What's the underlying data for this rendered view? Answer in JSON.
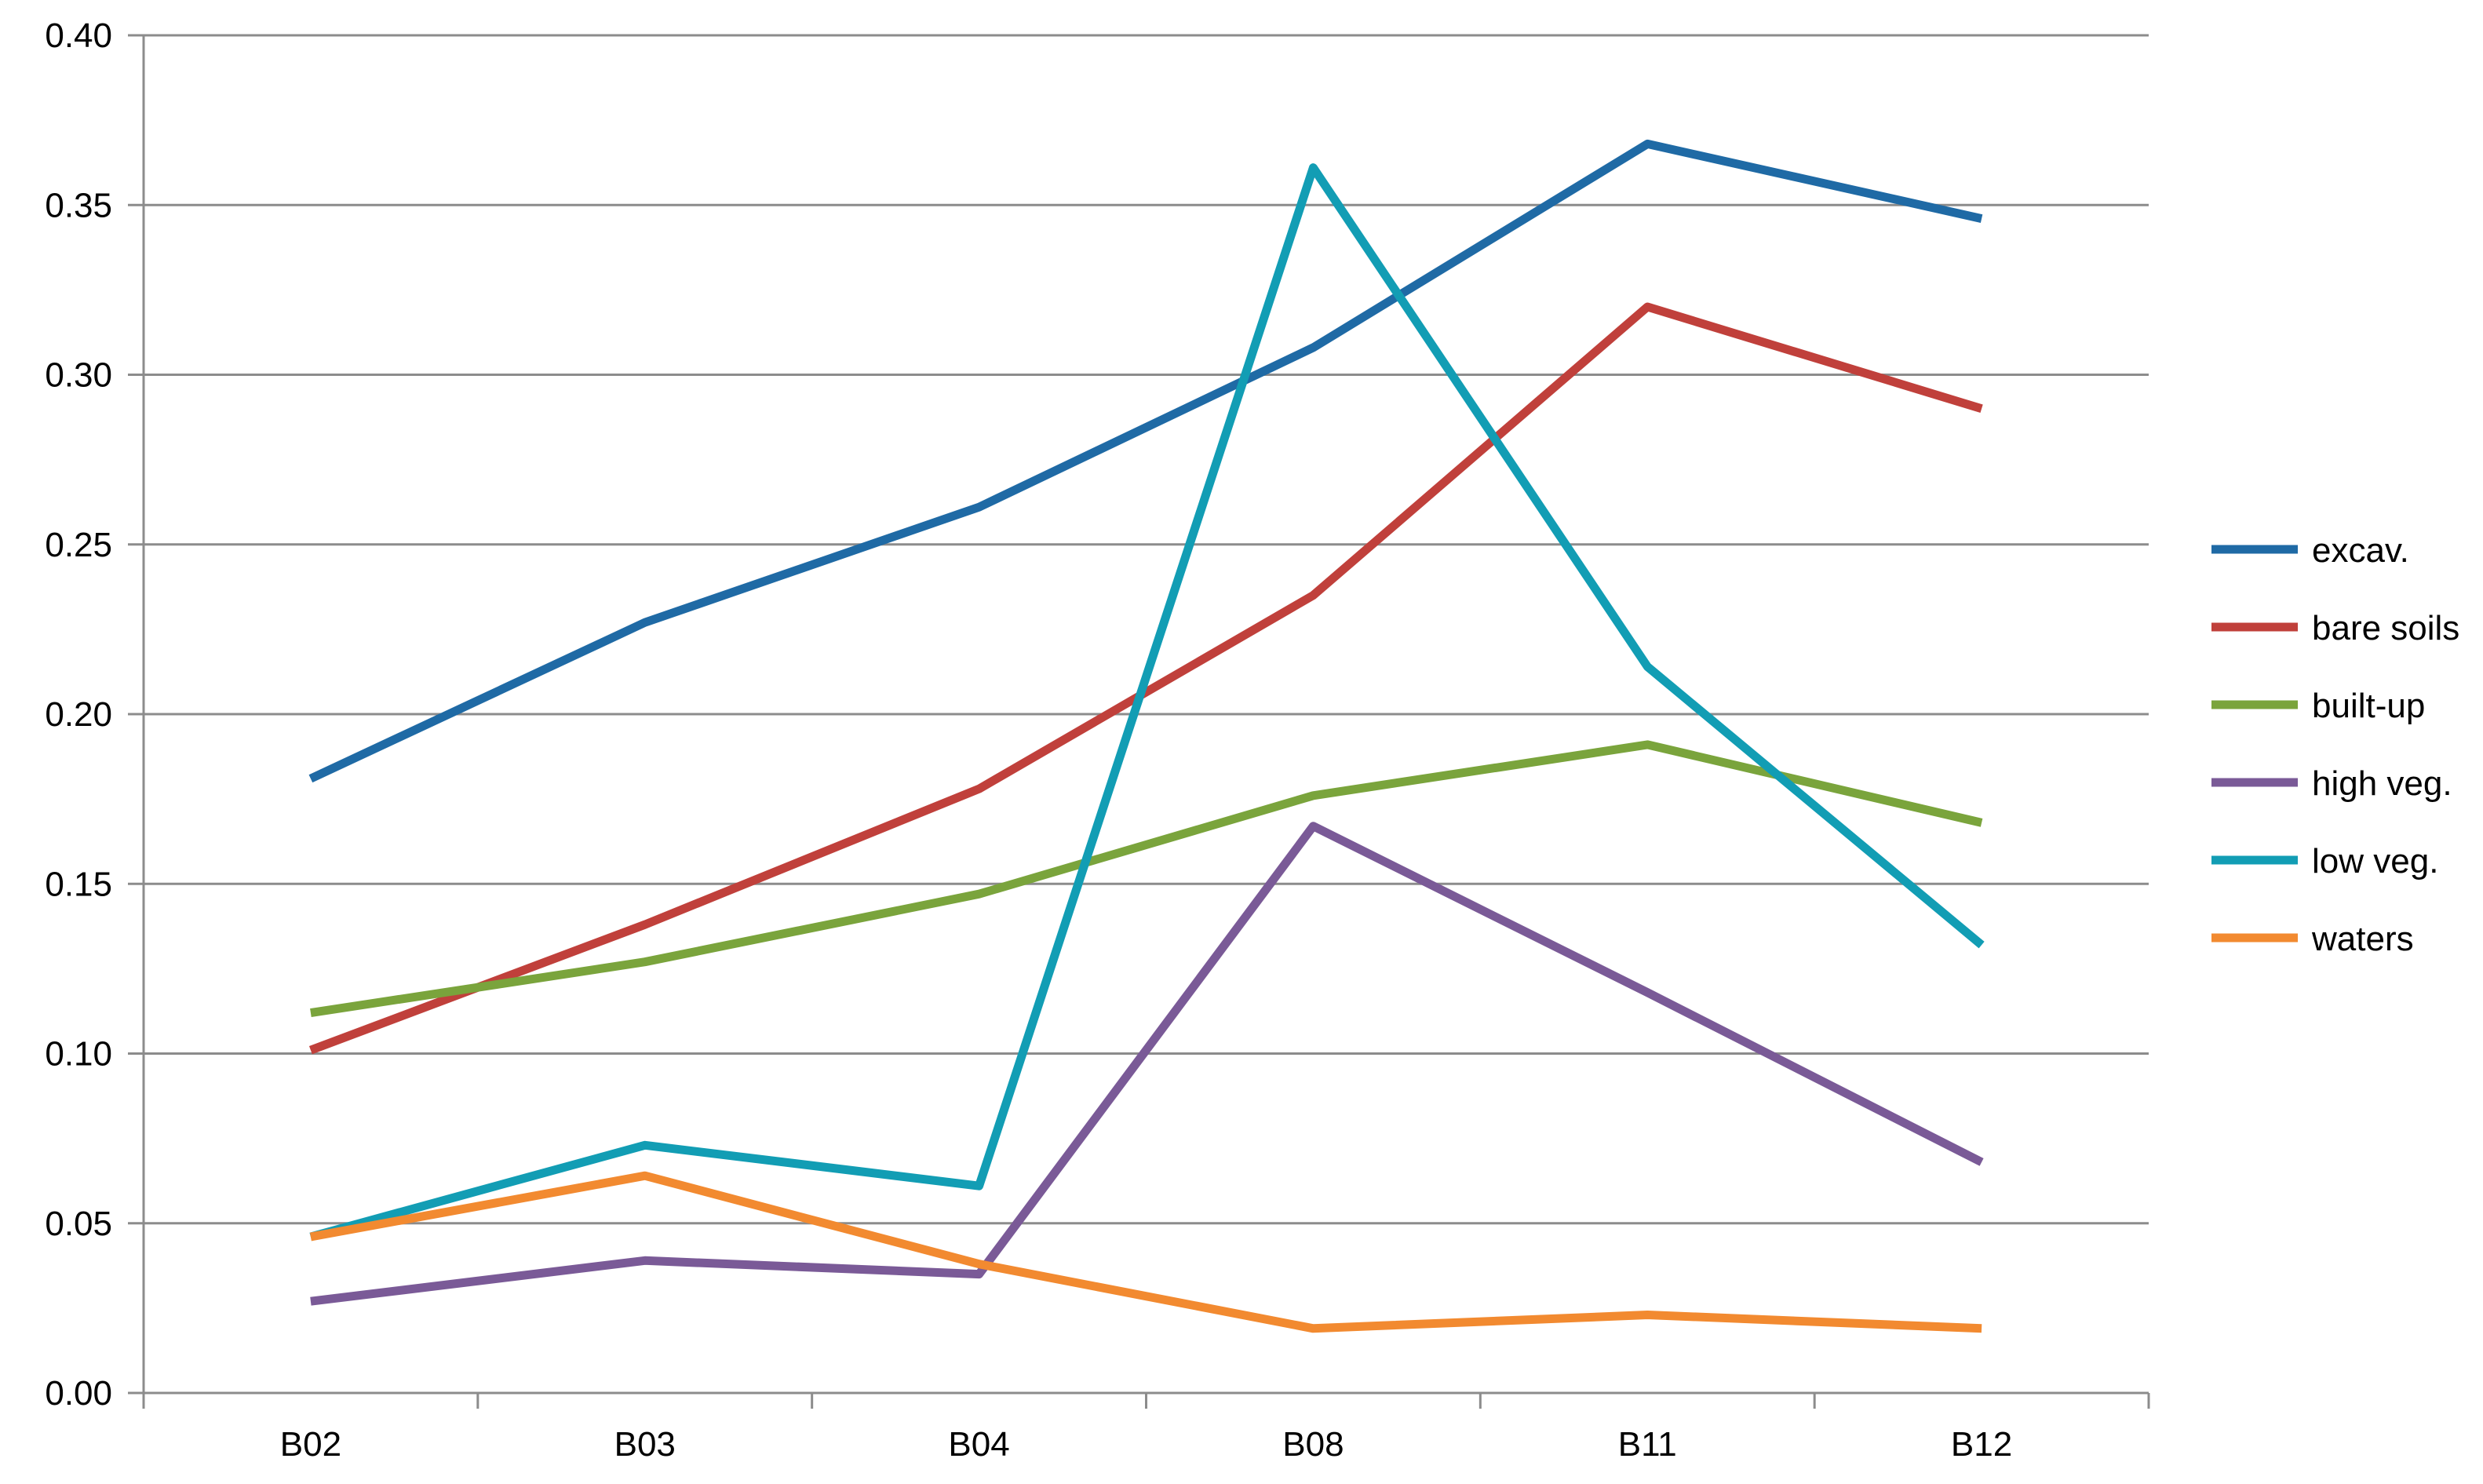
{
  "chart_data": {
    "type": "line",
    "title": "",
    "xlabel": "",
    "ylabel": "",
    "categories": [
      "B02",
      "B03",
      "B04",
      "B08",
      "B11",
      "B12"
    ],
    "ylim": [
      0,
      0.4
    ],
    "yticks": [
      "0.00",
      "0.05",
      "0.10",
      "0.15",
      "0.20",
      "0.25",
      "0.30",
      "0.35",
      "0.40"
    ],
    "grid": true,
    "legend": "right",
    "series": [
      {
        "name": "excav.",
        "color": "#1f6aa5",
        "values": [
          0.181,
          0.227,
          0.261,
          0.308,
          0.368,
          0.346
        ]
      },
      {
        "name": "bare soils",
        "color": "#c0403b",
        "values": [
          0.101,
          0.138,
          0.178,
          0.235,
          0.32,
          0.29
        ]
      },
      {
        "name": "built-up",
        "color": "#7aa43c",
        "values": [
          0.112,
          0.127,
          0.147,
          0.176,
          0.191,
          0.168
        ]
      },
      {
        "name": "high veg.",
        "color": "#7a5a97",
        "values": [
          0.027,
          0.039,
          0.035,
          0.167,
          0.118,
          0.068
        ]
      },
      {
        "name": "low veg.",
        "color": "#129db4",
        "values": [
          0.046,
          0.073,
          0.061,
          0.361,
          0.214,
          0.132
        ]
      },
      {
        "name": "waters",
        "color": "#f28a30",
        "values": [
          0.046,
          0.064,
          0.038,
          0.019,
          0.023,
          0.019
        ]
      }
    ]
  }
}
